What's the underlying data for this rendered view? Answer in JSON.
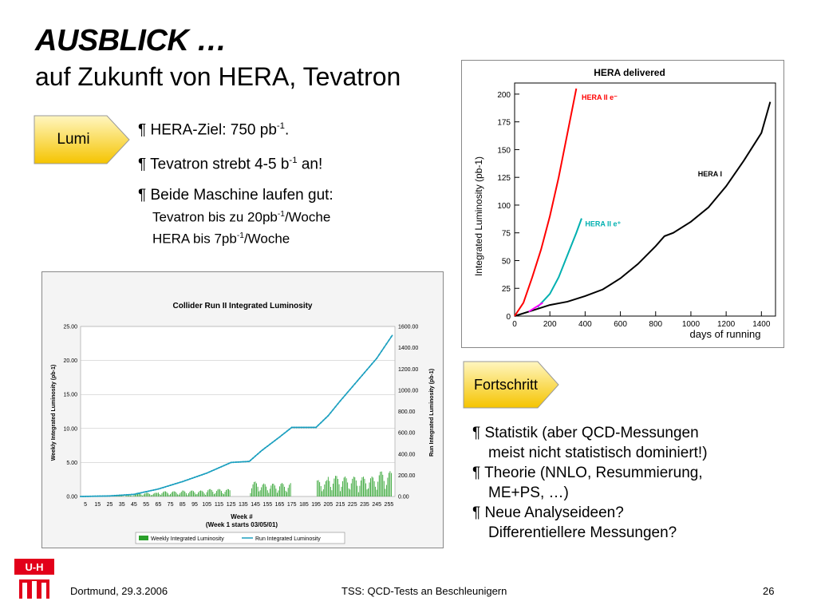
{
  "slide": {
    "title": "AUSBLICK …",
    "subtitle": "auf Zukunft von HERA, Tevatron",
    "lumi_label": "Lumi",
    "fortschritt_label": "Fortschritt",
    "lumi_bullets": [
      {
        "pre": "¶ HERA-Ziel: 750 pb",
        "sup": "-1",
        "post": "."
      },
      {
        "pre": "¶ Tevatron strebt 4-5 b",
        "sup": "-1",
        "post": " an!"
      },
      {
        "pre": "¶ Beide Maschine laufen gut:",
        "sup": "",
        "post": ""
      }
    ],
    "lumi_subbullets": [
      {
        "pre": "Tevatron bis zu 20pb",
        "sup": "-1",
        "post": "/Woche"
      },
      {
        "pre": "HERA bis 7pb",
        "sup": "-1",
        "post": "/Woche"
      }
    ],
    "progress_bullets": [
      {
        "line1": "¶ Statistik (aber QCD-Messungen",
        "line2": "meist nicht statistisch dominiert!)"
      },
      {
        "line1": "¶ Theorie (NNLO, Resummierung,",
        "line2": "ME+PS, …)"
      },
      {
        "line1": "¶ Neue Analyseideen?",
        "line2": "Differentiellere Messungen?"
      }
    ],
    "footer": {
      "left": "Dortmund, 29.3.2006",
      "center": "TSS: QCD-Tests an Beschleunigern",
      "page": "26"
    },
    "logo_text": "U-H"
  },
  "chart_data": [
    {
      "type": "line",
      "title": "HERA delivered",
      "xlabel": "days of running",
      "ylabel": "Integrated Luminosity (pb-1)",
      "xlim": [
        0,
        1480
      ],
      "ylim": [
        0,
        210
      ],
      "x_ticks": [
        0,
        200,
        400,
        600,
        800,
        1000,
        1200,
        1400
      ],
      "y_ticks": [
        0,
        25,
        50,
        75,
        100,
        125,
        150,
        175,
        200
      ],
      "series": [
        {
          "name": "HERA I",
          "color": "#000000",
          "x": [
            0,
            100,
            200,
            300,
            400,
            500,
            600,
            700,
            800,
            850,
            900,
            1000,
            1100,
            1200,
            1300,
            1400,
            1450
          ],
          "y": [
            0,
            5,
            10,
            13,
            18,
            24,
            34,
            47,
            63,
            72,
            75,
            85,
            98,
            117,
            140,
            165,
            193
          ]
        },
        {
          "name": "HERA II e-",
          "color": "#ff0000",
          "x": [
            0,
            50,
            100,
            150,
            200,
            250,
            300,
            350
          ],
          "y": [
            0,
            12,
            35,
            60,
            90,
            125,
            165,
            205
          ]
        },
        {
          "name": "HERA II e+",
          "color": "#00b0b0",
          "x": [
            130,
            200,
            250,
            300,
            350,
            380
          ],
          "y": [
            8,
            20,
            35,
            55,
            75,
            88
          ]
        },
        {
          "name": "",
          "color": "#ff00ff",
          "x": [
            80,
            120,
            160
          ],
          "y": [
            4,
            8,
            12
          ]
        }
      ],
      "labels": [
        {
          "text": "HERA II e⁻",
          "x": 380,
          "y": 195,
          "color": "#ff0000"
        },
        {
          "text": "HERA II e⁺",
          "x": 400,
          "y": 81,
          "color": "#00b0b0"
        },
        {
          "text": "HERA I",
          "x": 1040,
          "y": 126,
          "color": "#000000"
        }
      ]
    },
    {
      "type": "bar",
      "title": "Collider Run II Integrated Luminosity",
      "xlabel": "Week  #",
      "xlabel2": "(Week 1 starts 03/05/01)",
      "ylabel": "Weekly Integrated Luminosity (pb-1)",
      "y2label": "Run Integrated Luminosity (pb-1)",
      "xlim": [
        1,
        260
      ],
      "ylim": [
        0,
        25
      ],
      "y2lim": [
        0,
        1600
      ],
      "y_ticks": [
        "0.00",
        "5.00",
        "10.00",
        "15.00",
        "20.00",
        "25.00"
      ],
      "y2_ticks": [
        "0.00",
        "200.00",
        "400.00",
        "600.00",
        "800.00",
        "1000.00",
        "1200.00",
        "1400.00",
        "1600.00"
      ],
      "x_ticks": [
        5,
        15,
        25,
        35,
        45,
        55,
        65,
        75,
        85,
        95,
        105,
        115,
        125,
        135,
        145,
        155,
        165,
        175,
        185,
        195,
        205,
        215,
        225,
        235,
        245,
        255
      ],
      "legend": [
        "Weekly Integrated Luminosity",
        "Run Integrated Luminosity"
      ],
      "legend_position": "bottom",
      "bar_color": "#2aa02a",
      "line_color": "#1a9fbf",
      "cumulative_points": [
        [
          1,
          0
        ],
        [
          25,
          5
        ],
        [
          45,
          20
        ],
        [
          65,
          70
        ],
        [
          85,
          140
        ],
        [
          105,
          220
        ],
        [
          125,
          320
        ],
        [
          140,
          330
        ],
        [
          150,
          430
        ],
        [
          165,
          560
        ],
        [
          175,
          650
        ],
        [
          195,
          650
        ],
        [
          205,
          760
        ],
        [
          215,
          900
        ],
        [
          230,
          1100
        ],
        [
          245,
          1300
        ],
        [
          258,
          1520
        ]
      ]
    }
  ]
}
